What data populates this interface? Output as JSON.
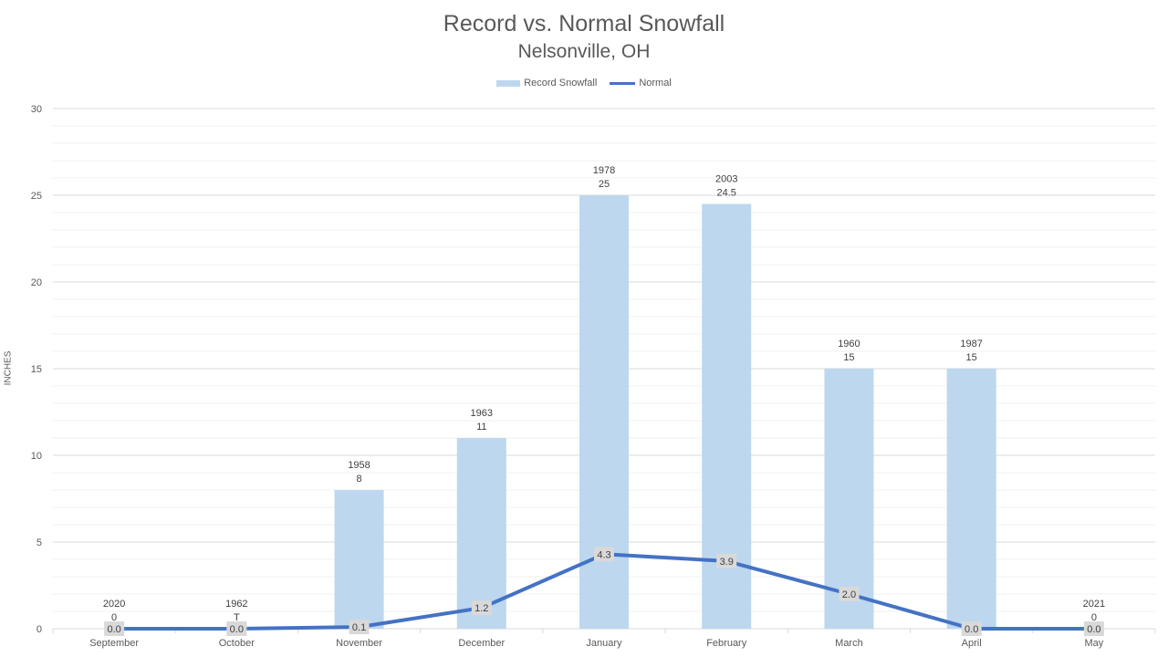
{
  "chart_data": {
    "type": "bar",
    "title": "Record vs. Normal Snowfall",
    "subtitle": "Nelsonville, OH",
    "ylabel": "INCHES",
    "xlabel": "",
    "ylim": [
      0,
      30
    ],
    "yticks": [
      0,
      5,
      10,
      15,
      20,
      25,
      30
    ],
    "grid": true,
    "legend_position": "top",
    "categories": [
      "September",
      "October",
      "November",
      "December",
      "January",
      "February",
      "March",
      "April",
      "May"
    ],
    "series": [
      {
        "name": "Record Snowfall",
        "type": "bar",
        "color": "#bdd7ee",
        "values": [
          0,
          0,
          8,
          11,
          25,
          24.5,
          15,
          15,
          0
        ],
        "value_labels": [
          "0",
          "T",
          "8",
          "11",
          "25",
          "24.5",
          "15",
          "15",
          "0"
        ],
        "years": [
          "2020",
          "1962",
          "1958",
          "1963",
          "1978",
          "2003",
          "1960",
          "1987",
          "2021"
        ]
      },
      {
        "name": "Normal",
        "type": "line",
        "color": "#4472c4",
        "values": [
          0.0,
          0.0,
          0.1,
          1.2,
          4.3,
          3.9,
          2.0,
          0.0,
          0.0
        ],
        "value_labels": [
          "0.0",
          "0.0",
          "0.1",
          "1.2",
          "4.3",
          "3.9",
          "2.0",
          "0.0",
          "0.0"
        ]
      }
    ]
  }
}
